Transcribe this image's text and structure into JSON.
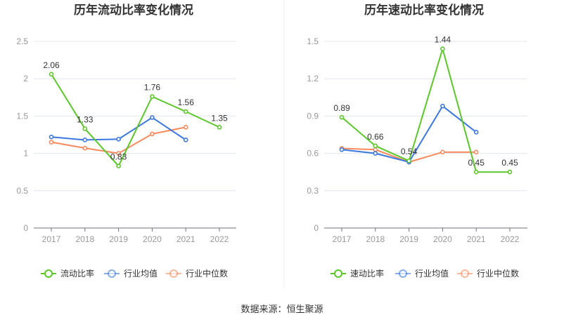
{
  "source": "数据来源：恒生聚源",
  "colors": {
    "company": "#5cc72a",
    "avg": "#3a78e0",
    "median": "#fa8a5c"
  },
  "chart_data": [
    {
      "type": "line",
      "title": "历年流动比率变化情况",
      "categories": [
        "2017",
        "2018",
        "2019",
        "2020",
        "2021",
        "2022"
      ],
      "ylim": [
        0,
        2.5
      ],
      "yticks": [
        "0",
        "0.5",
        "1",
        "1.5",
        "2",
        "2.5"
      ],
      "legend_position": "bottom",
      "series": [
        {
          "name": "流动比率",
          "values": [
            2.06,
            1.33,
            0.83,
            1.76,
            1.56,
            1.35
          ],
          "labels": [
            "2.06",
            "1.33",
            "0.83",
            "1.76",
            "1.56",
            "1.35"
          ]
        },
        {
          "name": "行业均值",
          "values": [
            1.22,
            1.18,
            1.19,
            1.48,
            1.18,
            null
          ]
        },
        {
          "name": "行业中位数",
          "values": [
            1.15,
            1.07,
            1.0,
            1.26,
            1.35,
            null
          ]
        }
      ]
    },
    {
      "type": "line",
      "title": "历年速动比率变化情况",
      "categories": [
        "2017",
        "2018",
        "2019",
        "2020",
        "2021",
        "2022"
      ],
      "ylim": [
        0,
        1.5
      ],
      "yticks": [
        "0",
        "0.3",
        "0.6",
        "0.9",
        "1.2",
        "1.5"
      ],
      "legend_position": "bottom",
      "series": [
        {
          "name": "速动比率",
          "values": [
            0.89,
            0.66,
            0.54,
            1.44,
            0.45,
            0.45
          ],
          "labels": [
            "0.89",
            "0.66",
            "0.54",
            "1.44",
            "0.45",
            "0.45"
          ]
        },
        {
          "name": "行业均值",
          "values": [
            0.63,
            0.6,
            0.53,
            0.98,
            0.77,
            null
          ]
        },
        {
          "name": "行业中位数",
          "values": [
            0.64,
            0.63,
            0.53,
            0.61,
            0.61,
            null
          ]
        }
      ]
    }
  ]
}
